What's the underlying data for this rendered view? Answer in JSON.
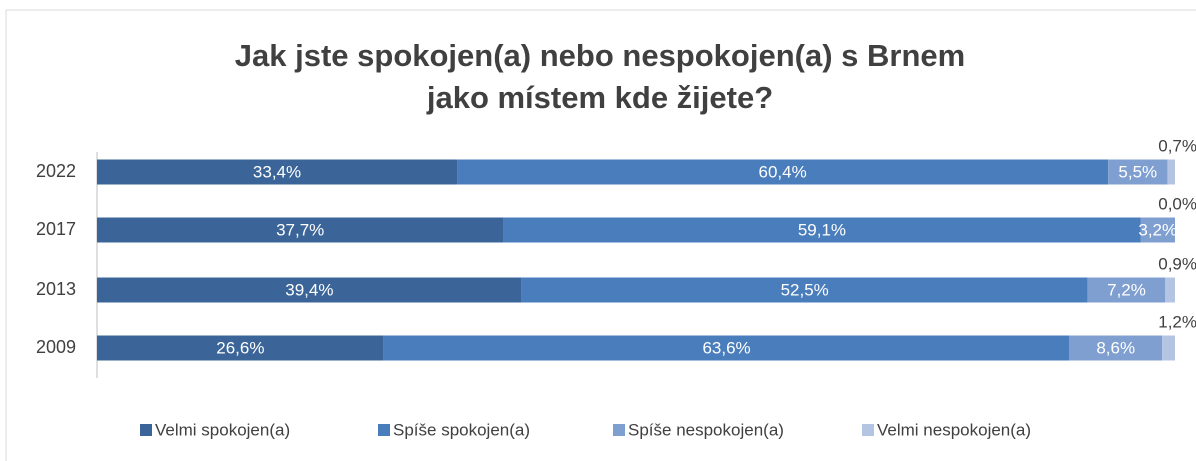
{
  "chart_data": {
    "type": "bar",
    "orientation": "horizontal",
    "stacked": true,
    "title": "Jak jste spokojen(a) nebo nespokojen(a) s Brnem jako místem kde žijete?",
    "categories": [
      "2022",
      "2017",
      "2013",
      "2009"
    ],
    "series": [
      {
        "name": "Velmi spokojen(a)",
        "color": "#3b6599",
        "values": [
          33.4,
          37.7,
          39.4,
          26.6
        ],
        "value_labels": [
          "33,4%",
          "37,7%",
          "39,4%",
          "26,6%"
        ]
      },
      {
        "name": "Spíše spokojen(a)",
        "color": "#4a7dbb",
        "values": [
          60.4,
          59.1,
          52.5,
          63.6
        ],
        "value_labels": [
          "60,4%",
          "59,1%",
          "52,5%",
          "63,6%"
        ]
      },
      {
        "name": "Spíše nespokojen(a)",
        "color": "#7f9fd1",
        "values": [
          5.5,
          3.2,
          7.2,
          8.6
        ],
        "value_labels": [
          "5,5%",
          "3,2%",
          "7,2%",
          "8,6%"
        ]
      },
      {
        "name": "Velmi nespokojen(a)",
        "color": "#b4c5e4",
        "values": [
          0.7,
          0.0,
          0.9,
          1.2
        ],
        "value_labels": [
          "0,7%",
          "0,0%",
          "0,9%",
          "1,2%"
        ]
      }
    ],
    "legend": "bottom"
  }
}
